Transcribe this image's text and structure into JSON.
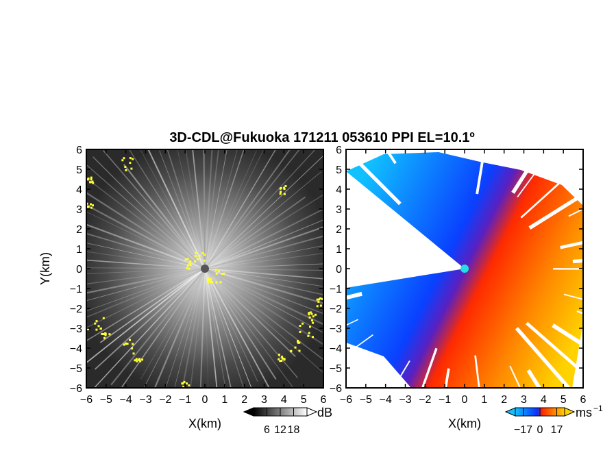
{
  "figure": {
    "title": "3D-CDL@Fukuoka 171211 053610 PPI EL=10.1º"
  },
  "chart_data": [
    {
      "type": "heatmap",
      "panel": "left",
      "quantity": "SNR",
      "xlabel": "X(km)",
      "ylabel": "Y(km)",
      "xlim": [
        -6,
        6
      ],
      "ylim": [
        -6,
        6
      ],
      "x_ticks": [
        -6,
        -5,
        -4,
        -3,
        -2,
        -1,
        0,
        1,
        2,
        3,
        4,
        5,
        6
      ],
      "y_ticks": [
        -6,
        -5,
        -4,
        -3,
        -2,
        -1,
        0,
        1,
        2,
        3,
        4,
        5,
        6
      ],
      "colormap": "grayscale",
      "highlight_color": "#ffff33",
      "colorbar": {
        "unit": "dB",
        "ticks": [
          6,
          12,
          18
        ],
        "range": [
          0,
          24
        ]
      }
    },
    {
      "type": "heatmap",
      "panel": "right",
      "quantity": "Doppler velocity",
      "xlabel": "X(km)",
      "xlim": [
        -6,
        6
      ],
      "ylim": [
        -6,
        6
      ],
      "x_ticks": [
        -6,
        -5,
        -4,
        -3,
        -2,
        -1,
        0,
        1,
        2,
        3,
        4,
        5,
        6
      ],
      "y_ticks": [
        -6,
        -5,
        -4,
        -3,
        -2,
        -1,
        0,
        1,
        2,
        3,
        4,
        5,
        6
      ],
      "colormap": "blue-white-red",
      "colors": {
        "negative_far": "#00b4ff",
        "negative_near": "#0a32ff",
        "positive_near": "#ff2800",
        "positive_far": "#ffd200"
      },
      "colorbar": {
        "unit": "ms",
        "unit_exp": "−1",
        "ticks": [
          -17,
          0,
          17
        ],
        "range": [
          -25,
          25
        ]
      }
    }
  ]
}
